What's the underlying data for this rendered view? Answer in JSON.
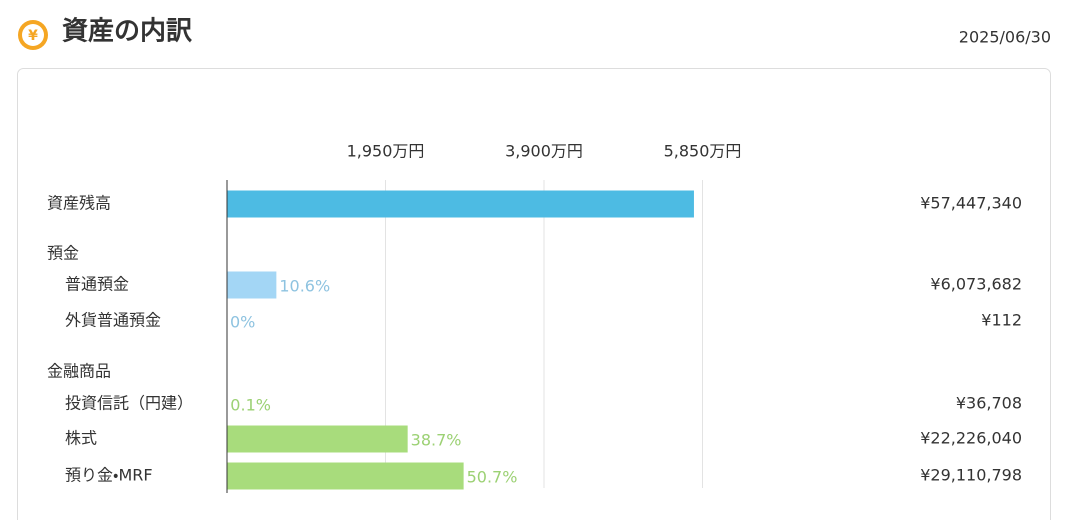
{
  "header": {
    "icon": "¥",
    "title": "資産の内訳",
    "date": "2025/06/30"
  },
  "chart_data": {
    "type": "hbar",
    "categories": [
      "資産残高",
      "預金",
      "普通預金",
      "外貨普通預金",
      "金融商品",
      "投資信託（円建）",
      "株式",
      "預り金・MRF"
    ],
    "values": [
      5744.734,
      null,
      607.3682,
      0.0112,
      null,
      3.6708,
      2222.604,
      2911.0798
    ],
    "value_labels": [
      "¥57,447,340",
      null,
      "¥6,073,682",
      "¥112",
      null,
      "¥36,708",
      "¥22,226,040",
      "¥29,110,798"
    ],
    "shares": [
      null,
      null,
      10.6,
      0,
      null,
      0.1,
      38.7,
      50.7
    ],
    "share_labels": [
      null,
      null,
      "10.6%",
      "0%",
      null,
      "0.1%",
      "38.7%",
      "50.7%"
    ],
    "colors": [
      "#4dbbe3",
      null,
      "#a3d6f5",
      "#a3d6f5",
      null,
      "#a8dc7c",
      "#a8dc7c",
      "#a8dc7c"
    ],
    "share_colors": [
      null,
      null,
      "#8ec3e0",
      "#8ec3e0",
      null,
      "#9cd174",
      "#9cd174",
      "#9cd174"
    ],
    "xlim": [
      0,
      7800
    ],
    "xticks": [
      {
        "value": 1950,
        "label": "1,950万円"
      },
      {
        "value": 3900,
        "label": "3,900万円"
      },
      {
        "value": 5850,
        "label": "5,850万円"
      }
    ],
    "grid": true
  }
}
